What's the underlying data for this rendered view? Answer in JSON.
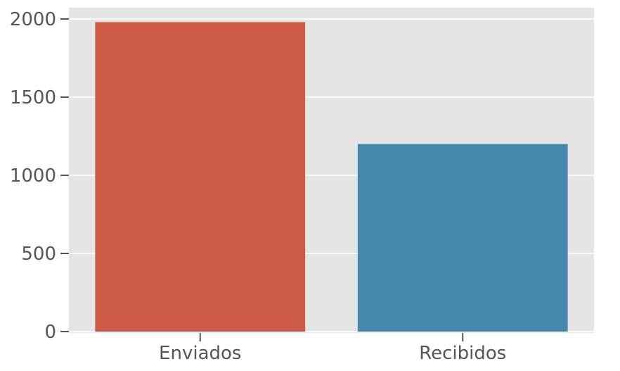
{
  "chart_data": {
    "type": "bar",
    "categories": [
      "Enviados",
      "Recibidos"
    ],
    "values": [
      1980,
      1200
    ],
    "colors": [
      "#cc5a48",
      "#4587ad"
    ],
    "ylim": [
      0,
      2000
    ],
    "yticks": [
      0,
      500,
      1000,
      1500,
      2000
    ],
    "ytick_labels": [
      "0",
      "500",
      "1000",
      "1500",
      "2000"
    ],
    "grid": true,
    "grid_axis": "y",
    "background": "#e5e5e5",
    "legend": "none"
  }
}
